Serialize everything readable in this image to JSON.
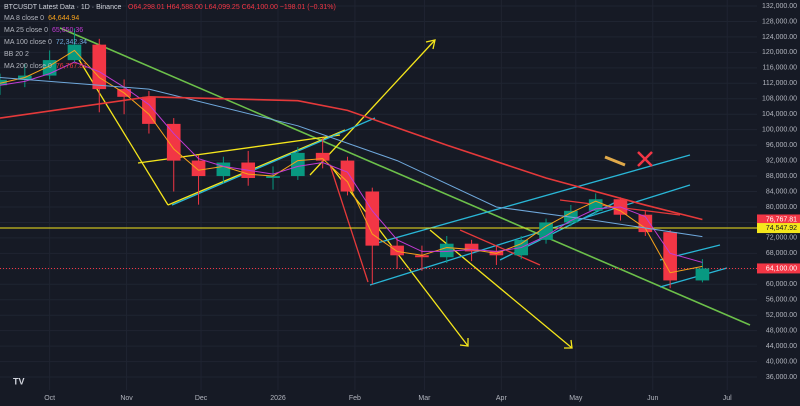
{
  "chart_data": {
    "type": "candlestick",
    "title": "BTCUSDT Latest Data · 1D · Binance",
    "ohlc_text": "O64,298.01 H64,588.00 L64,099.25 C64,100.00 −198.01 (−0.31%)",
    "bb_label": "BB 20 2",
    "x": [
      0,
      10,
      20,
      30,
      40,
      50,
      60,
      70,
      80,
      90,
      100,
      110,
      120,
      130,
      140,
      150,
      160,
      170,
      180,
      190,
      200,
      210,
      220,
      230,
      240,
      250,
      260,
      270,
      283
    ],
    "open": [
      111500,
      112900,
      114000,
      118000,
      122000,
      110500,
      108500,
      101500,
      92000,
      88000,
      91500,
      87500,
      88000,
      94000,
      92000,
      84000,
      70000,
      67500,
      67000,
      70500,
      68500,
      67500,
      71500,
      76000,
      79000,
      82000,
      78000,
      73500,
      61000
    ],
    "high": [
      114500,
      117000,
      120500,
      126200,
      123500,
      113000,
      110000,
      103000,
      93500,
      93000,
      94500,
      90500,
      95500,
      97900,
      93000,
      85000,
      72000,
      70000,
      72500,
      71500,
      70000,
      72500,
      77000,
      80500,
      83500,
      82500,
      79000,
      74000,
      66500
    ],
    "low": [
      109000,
      111000,
      113000,
      117500,
      104500,
      104000,
      99000,
      84000,
      80600,
      86000,
      85500,
      84500,
      87000,
      90000,
      83000,
      60000,
      64000,
      63500,
      65500,
      66000,
      65000,
      66500,
      70500,
      75000,
      78000,
      76500,
      72500,
      59000,
      60500
    ],
    "close": [
      112900,
      114000,
      118000,
      122000,
      110500,
      108500,
      101500,
      92000,
      88000,
      91500,
      87500,
      88000,
      94000,
      92000,
      84000,
      70000,
      67500,
      67000,
      70500,
      68500,
      67500,
      71500,
      76000,
      79000,
      82000,
      78000,
      73500,
      61000,
      64100
    ],
    "up_color": "#089981",
    "down_color": "#f23645",
    "series": [
      {
        "name": "MA 8 close 0",
        "color": "#f7a21b",
        "legend_value": "64,644.94",
        "x": [
          0,
          10,
          20,
          30,
          40,
          50,
          60,
          70,
          80,
          90,
          100,
          110,
          120,
          130,
          140,
          150,
          160,
          170,
          180,
          190,
          200,
          210,
          220,
          230,
          240,
          250,
          260,
          270,
          283
        ],
        "values": [
          112000,
          113500,
          116500,
          120500,
          113500,
          109500,
          104000,
          95000,
          89500,
          90500,
          88500,
          88000,
          92000,
          92500,
          86500,
          73000,
          68500,
          67500,
          69500,
          69000,
          68000,
          70500,
          75000,
          78500,
          81500,
          79000,
          74500,
          63000,
          64644.94
        ]
      },
      {
        "name": "MA 25 close 0",
        "color": "#c23bd4",
        "legend_value": "65,650.36",
        "x": [
          0,
          10,
          20,
          30,
          40,
          50,
          60,
          70,
          80,
          90,
          100,
          110,
          120,
          130,
          140,
          150,
          160,
          170,
          180,
          190,
          200,
          210,
          220,
          230,
          240,
          250,
          260,
          270,
          283
        ],
        "values": [
          111500,
          112500,
          114500,
          117500,
          115000,
          111000,
          106500,
          99000,
          92500,
          90500,
          89500,
          88500,
          90500,
          91500,
          89000,
          79000,
          71500,
          68500,
          68500,
          69000,
          68500,
          69500,
          72500,
          76500,
          79500,
          80000,
          77500,
          68000,
          65650.36
        ]
      },
      {
        "name": "MA 100 close 0",
        "color": "#6fa8dc",
        "legend_value": "72,342.34",
        "x": [
          0,
          60,
          120,
          160,
          200,
          240,
          283
        ],
        "values": [
          113500,
          110500,
          101000,
          92000,
          80000,
          76500,
          72342.34
        ]
      },
      {
        "name": "MA 200 close 0",
        "color": "#e5393a",
        "legend_value": "76,767.81",
        "x": [
          0,
          60,
          120,
          140,
          180,
          220,
          260,
          283
        ],
        "values": [
          103000,
          108500,
          107500,
          105000,
          96000,
          87500,
          80500,
          76767.81
        ]
      }
    ],
    "markers": [
      {
        "value": 76767.81,
        "label": "76,767.81",
        "color": "#f23645",
        "line": "none"
      },
      {
        "value": 74547.92,
        "label": "74,547.92",
        "color": "#f5e61b",
        "line": "solid"
      },
      {
        "value": 64100,
        "label": "64,100.00",
        "color": "#f23645",
        "line": "dotted"
      }
    ],
    "xlim": [
      0,
      305
    ],
    "xticks": [
      {
        "value": 20,
        "label": "Oct"
      },
      {
        "value": 51,
        "label": "Nov"
      },
      {
        "value": 81,
        "label": "Dec"
      },
      {
        "value": 112,
        "label": "2026"
      },
      {
        "value": 143,
        "label": "Feb"
      },
      {
        "value": 171,
        "label": "Mar"
      },
      {
        "value": 202,
        "label": "Apr"
      },
      {
        "value": 232,
        "label": "May"
      },
      {
        "value": 263,
        "label": "Jun"
      },
      {
        "value": 293,
        "label": "Jul"
      }
    ],
    "ylim": [
      32650,
      133550
    ],
    "yticks": [
      {
        "value": 36000,
        "label": "36,000.00"
      },
      {
        "value": 40000,
        "label": "40,000.00"
      },
      {
        "value": 44000,
        "label": "44,000.00"
      },
      {
        "value": 48000,
        "label": "48,000.00"
      },
      {
        "value": 52000,
        "label": "52,000.00"
      },
      {
        "value": 56000,
        "label": "56,000.00"
      },
      {
        "value": 60000,
        "label": "60,000.00"
      },
      {
        "value": 64000,
        "label": "64,000.00"
      },
      {
        "value": 68000,
        "label": "68,000.00"
      },
      {
        "value": 72000,
        "label": "72,000.00"
      },
      {
        "value": 76000,
        "label": "76,000.00"
      },
      {
        "value": 80000,
        "label": "80,000.00"
      },
      {
        "value": 84000,
        "label": "84,000.00"
      },
      {
        "value": 88000,
        "label": "88,000.00"
      },
      {
        "value": 92000,
        "label": "92,000.00"
      },
      {
        "value": 96000,
        "label": "96,000.00"
      },
      {
        "value": 100000,
        "label": "100,000.00"
      },
      {
        "value": 104000,
        "label": "104,000.00"
      },
      {
        "value": 108000,
        "label": "108,000.00"
      },
      {
        "value": 112000,
        "label": "112,000.00"
      },
      {
        "value": 116000,
        "label": "116,000.00"
      },
      {
        "value": 120000,
        "label": "120,000.00"
      },
      {
        "value": 124000,
        "label": "124,000.00"
      },
      {
        "value": 128000,
        "label": "128,000.00"
      },
      {
        "value": 132000,
        "label": "132,000.00"
      }
    ],
    "grid": true
  }
}
